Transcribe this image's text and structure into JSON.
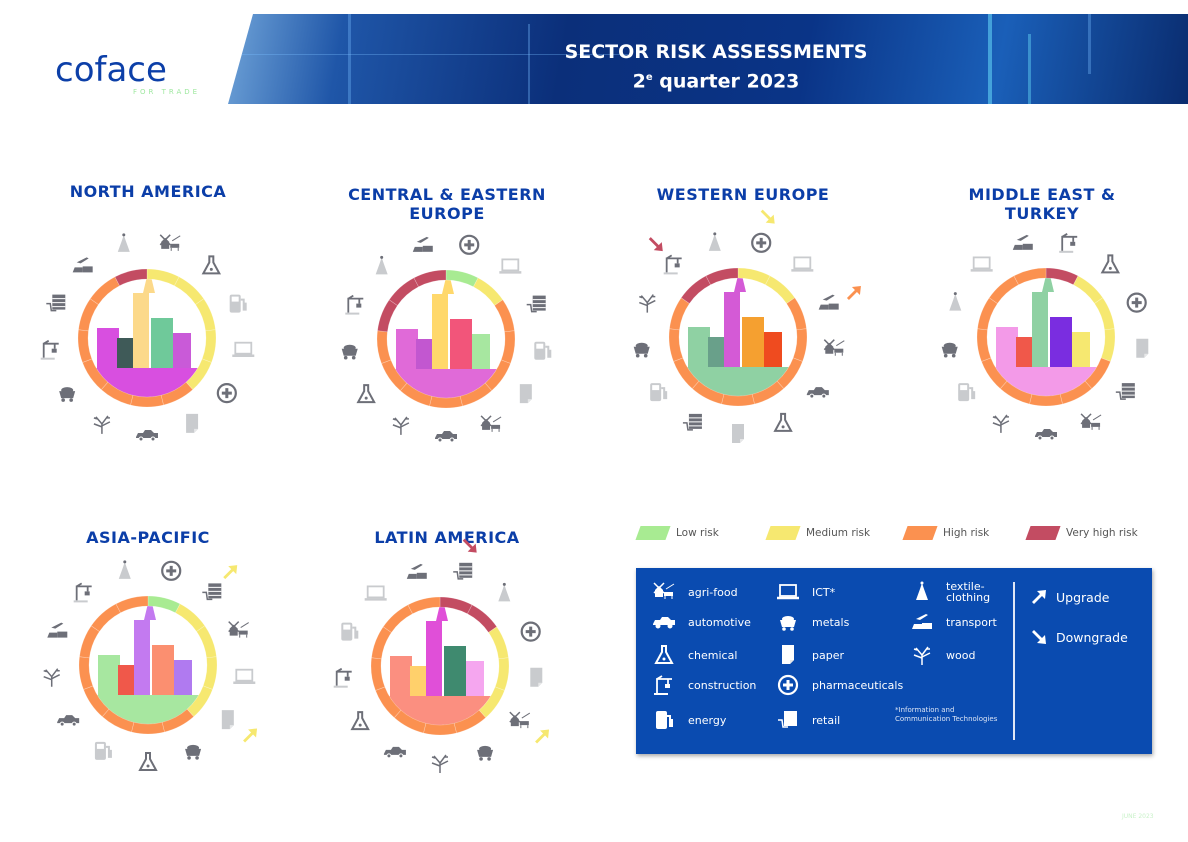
{
  "header": {
    "title_line1": "SECTOR RISK ASSESSMENTS",
    "title_line2_number": "2",
    "title_line2_sup": "e",
    "title_line2_rest": " quarter 2023"
  },
  "logo": {
    "word": "coface",
    "tagline": "FOR TRADE"
  },
  "risk_levels": [
    {
      "key": "low",
      "label": "Low risk",
      "color": "#a8eb92"
    },
    {
      "key": "medium",
      "label": "Medium risk",
      "color": "#f6e870"
    },
    {
      "key": "high",
      "label": "High risk",
      "color": "#fb9150"
    },
    {
      "key": "very_high",
      "label": "Very high risk",
      "color": "#c34c62"
    }
  ],
  "sectors": [
    {
      "key": "agri",
      "label": "agri-food"
    },
    {
      "key": "auto",
      "label": "automotive"
    },
    {
      "key": "chem",
      "label": "chemical"
    },
    {
      "key": "constr",
      "label": "construction"
    },
    {
      "key": "energy",
      "label": "energy"
    },
    {
      "key": "ict",
      "label": "ICT*"
    },
    {
      "key": "metals",
      "label": "metals"
    },
    {
      "key": "paper",
      "label": "paper"
    },
    {
      "key": "pharma",
      "label": "pharmaceuticals"
    },
    {
      "key": "retail",
      "label": "retail"
    },
    {
      "key": "textile",
      "label": "textile-clothing"
    },
    {
      "key": "transport",
      "label": "transport"
    },
    {
      "key": "wood",
      "label": "wood"
    }
  ],
  "footnote": "*Information and Communication Technologies",
  "changes": [
    {
      "key": "up",
      "label": "Upgrade"
    },
    {
      "key": "down",
      "label": "Downgrade"
    }
  ],
  "regions": [
    {
      "name": "NORTH AMERICA",
      "sectors": [
        {
          "s": "agri",
          "risk": "medium"
        },
        {
          "s": "chem",
          "risk": "medium"
        },
        {
          "s": "energy",
          "risk": "medium"
        },
        {
          "s": "ict",
          "risk": "medium"
        },
        {
          "s": "pharma",
          "risk": "medium"
        },
        {
          "s": "paper",
          "risk": "high"
        },
        {
          "s": "auto",
          "risk": "high"
        },
        {
          "s": "wood",
          "risk": "high"
        },
        {
          "s": "metals",
          "risk": "high"
        },
        {
          "s": "constr",
          "risk": "high"
        },
        {
          "s": "retail",
          "risk": "high"
        },
        {
          "s": "transport",
          "risk": "high"
        },
        {
          "s": "textile",
          "risk": "very_high"
        }
      ]
    },
    {
      "name": "CENTRAL & EASTERN EUROPE",
      "sectors": [
        {
          "s": "pharma",
          "risk": "low"
        },
        {
          "s": "ict",
          "risk": "medium"
        },
        {
          "s": "retail",
          "risk": "high"
        },
        {
          "s": "energy",
          "risk": "high"
        },
        {
          "s": "paper",
          "risk": "high"
        },
        {
          "s": "agri",
          "risk": "high"
        },
        {
          "s": "auto",
          "risk": "high"
        },
        {
          "s": "wood",
          "risk": "high"
        },
        {
          "s": "chem",
          "risk": "high"
        },
        {
          "s": "metals",
          "risk": "high"
        },
        {
          "s": "constr",
          "risk": "very_high"
        },
        {
          "s": "textile",
          "risk": "very_high"
        },
        {
          "s": "transport",
          "risk": "very_high"
        }
      ]
    },
    {
      "name": "WESTERN EUROPE",
      "sectors": [
        {
          "s": "pharma",
          "risk": "medium",
          "change": "down"
        },
        {
          "s": "ict",
          "risk": "medium"
        },
        {
          "s": "transport",
          "risk": "high",
          "change": "up"
        },
        {
          "s": "agri",
          "risk": "high"
        },
        {
          "s": "auto",
          "risk": "high"
        },
        {
          "s": "chem",
          "risk": "high"
        },
        {
          "s": "paper",
          "risk": "high"
        },
        {
          "s": "retail",
          "risk": "high"
        },
        {
          "s": "energy",
          "risk": "high"
        },
        {
          "s": "metals",
          "risk": "high"
        },
        {
          "s": "wood",
          "risk": "high"
        },
        {
          "s": "constr",
          "risk": "very_high",
          "change": "down"
        },
        {
          "s": "textile",
          "risk": "very_high"
        }
      ]
    },
    {
      "name": "MIDDLE EAST & TURKEY",
      "sectors": [
        {
          "s": "constr",
          "risk": "very_high"
        },
        {
          "s": "chem",
          "risk": "medium"
        },
        {
          "s": "pharma",
          "risk": "medium"
        },
        {
          "s": "paper",
          "risk": "medium"
        },
        {
          "s": "retail",
          "risk": "high"
        },
        {
          "s": "agri",
          "risk": "high"
        },
        {
          "s": "auto",
          "risk": "high"
        },
        {
          "s": "wood",
          "risk": "high"
        },
        {
          "s": "energy",
          "risk": "high"
        },
        {
          "s": "metals",
          "risk": "high"
        },
        {
          "s": "textile",
          "risk": "high"
        },
        {
          "s": "ict",
          "risk": "high"
        },
        {
          "s": "transport",
          "risk": "high"
        }
      ]
    },
    {
      "name": "ASIA-PACIFIC",
      "sectors": [
        {
          "s": "pharma",
          "risk": "low"
        },
        {
          "s": "retail",
          "risk": "medium",
          "change": "up"
        },
        {
          "s": "agri",
          "risk": "medium"
        },
        {
          "s": "ict",
          "risk": "medium"
        },
        {
          "s": "paper",
          "risk": "medium",
          "change": "up"
        },
        {
          "s": "metals",
          "risk": "high"
        },
        {
          "s": "chem",
          "risk": "high"
        },
        {
          "s": "energy",
          "risk": "high"
        },
        {
          "s": "auto",
          "risk": "high"
        },
        {
          "s": "wood",
          "risk": "high"
        },
        {
          "s": "transport",
          "risk": "high"
        },
        {
          "s": "constr",
          "risk": "high"
        },
        {
          "s": "textile",
          "risk": "high"
        }
      ]
    },
    {
      "name": "LATIN AMERICA",
      "sectors": [
        {
          "s": "retail",
          "risk": "very_high",
          "change": "down"
        },
        {
          "s": "textile",
          "risk": "very_high"
        },
        {
          "s": "pharma",
          "risk": "medium"
        },
        {
          "s": "paper",
          "risk": "medium"
        },
        {
          "s": "agri",
          "risk": "medium",
          "change": "up"
        },
        {
          "s": "metals",
          "risk": "high"
        },
        {
          "s": "wood",
          "risk": "high"
        },
        {
          "s": "auto",
          "risk": "high"
        },
        {
          "s": "chem",
          "risk": "high"
        },
        {
          "s": "constr",
          "risk": "high"
        },
        {
          "s": "energy",
          "risk": "high"
        },
        {
          "s": "ict",
          "risk": "high"
        },
        {
          "s": "transport",
          "risk": "high"
        }
      ]
    }
  ],
  "date": "JUNE 2023"
}
